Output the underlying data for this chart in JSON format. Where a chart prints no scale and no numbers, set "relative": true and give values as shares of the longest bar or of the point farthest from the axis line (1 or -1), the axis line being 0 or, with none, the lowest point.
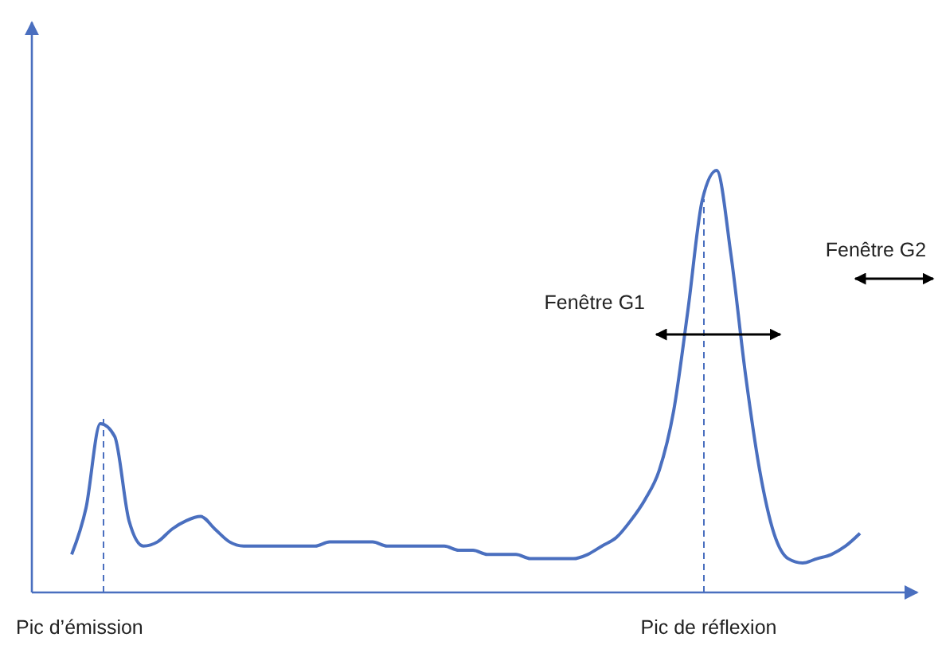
{
  "chart_data": {
    "type": "line",
    "relative": true,
    "categories": [
      null,
      null,
      null,
      null,
      null,
      null,
      null,
      null,
      null,
      null,
      null,
      null,
      null,
      null,
      null,
      null,
      null,
      null,
      null,
      null,
      null,
      null,
      null,
      null,
      null,
      null,
      null,
      null,
      null,
      null,
      null,
      null,
      null,
      null,
      null,
      null,
      null,
      null,
      null,
      null,
      null,
      null,
      null,
      null,
      null,
      null,
      null,
      null,
      null,
      null,
      null,
      null,
      null,
      null,
      null,
      null
    ],
    "series": [
      {
        "color": "#4a6fbf",
        "values": [
          0.09,
          0.2,
          0.4,
          0.37,
          0.17,
          0.11,
          0.12,
          0.15,
          0.17,
          0.18,
          0.15,
          0.12,
          0.11,
          0.11,
          0.11,
          0.11,
          0.11,
          0.11,
          0.12,
          0.12,
          0.12,
          0.12,
          0.11,
          0.11,
          0.11,
          0.11,
          0.11,
          0.1,
          0.1,
          0.09,
          0.09,
          0.09,
          0.08,
          0.08,
          0.08,
          0.08,
          0.09,
          0.11,
          0.13,
          0.17,
          0.22,
          0.29,
          0.43,
          0.67,
          0.93,
          1,
          0.8,
          0.52,
          0.29,
          0.14,
          0.08,
          0.07,
          0.08,
          0.09,
          0.11,
          0.14
        ]
      }
    ],
    "annotations": [
      "Pic d’émission",
      "Pic de réflexion",
      "Fenêtre G1",
      "Fenêtre G2"
    ],
    "line_style": "solid"
  }
}
